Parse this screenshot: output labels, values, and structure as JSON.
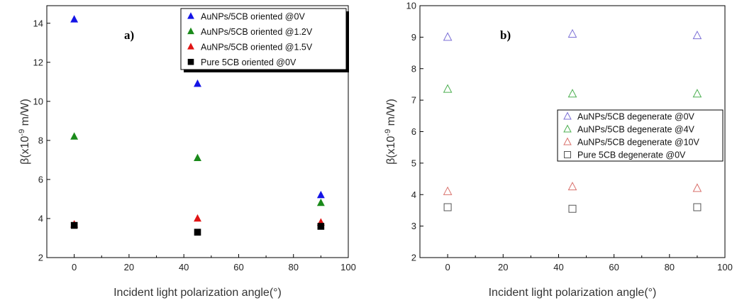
{
  "chart_data": [
    {
      "type": "scatter",
      "panel_label": "a)",
      "xlabel": "Incident light polarization angle(°)",
      "ylabel_main": "β(x10",
      "ylabel_exp": "-9",
      "ylabel_tail": " m/W)",
      "xlim": [
        -10,
        100
      ],
      "ylim": [
        2,
        14.9
      ],
      "xticks": [
        0,
        20,
        40,
        60,
        80,
        100
      ],
      "yticks": [
        2,
        4,
        6,
        8,
        10,
        12,
        14
      ],
      "marker_fill": "filled",
      "legend_position": "top-right",
      "series": [
        {
          "name": "AuNPs/5CB oriented @0V",
          "marker": "triangle",
          "color": "#1414e6",
          "x": [
            0,
            45,
            90
          ],
          "y": [
            14.2,
            10.9,
            5.2
          ]
        },
        {
          "name": "AuNPs/5CB oriented @1.2V",
          "marker": "triangle",
          "color": "#1a8a1a",
          "x": [
            0,
            45,
            90
          ],
          "y": [
            8.2,
            7.1,
            4.8
          ]
        },
        {
          "name": "AuNPs/5CB oriented @1.5V",
          "marker": "triangle",
          "color": "#e01414",
          "x": [
            0,
            45,
            90
          ],
          "y": [
            3.7,
            4.0,
            3.8
          ]
        },
        {
          "name": "Pure 5CB oriented @0V",
          "marker": "square",
          "color": "#000000",
          "x": [
            0,
            45,
            90
          ],
          "y": [
            3.65,
            3.3,
            3.6
          ]
        }
      ]
    },
    {
      "type": "scatter",
      "panel_label": "b)",
      "xlabel": "Incident light polarization angle(°)",
      "ylabel_main": "β(x10",
      "ylabel_exp": "-9",
      "ylabel_tail": " m/W)",
      "xlim": [
        -10,
        100
      ],
      "ylim": [
        2,
        10
      ],
      "xticks": [
        0,
        20,
        40,
        60,
        80,
        100
      ],
      "yticks": [
        2,
        3,
        4,
        5,
        6,
        7,
        8,
        9,
        10
      ],
      "marker_fill": "open",
      "legend_position": "center-right",
      "series": [
        {
          "name": "AuNPs/5CB degenerate @0V",
          "marker": "triangle",
          "color": "#7b6fd6",
          "x": [
            0,
            45,
            90
          ],
          "y": [
            9.0,
            9.1,
            9.05
          ]
        },
        {
          "name": "AuNPs/5CB degenerate @4V",
          "marker": "triangle",
          "color": "#4caf50",
          "x": [
            0,
            45,
            90
          ],
          "y": [
            7.35,
            7.2,
            7.2
          ]
        },
        {
          "name": "AuNPs/5CB degenerate @10V",
          "marker": "triangle",
          "color": "#d9706b",
          "x": [
            0,
            45,
            90
          ],
          "y": [
            4.1,
            4.25,
            4.2
          ]
        },
        {
          "name": "Pure 5CB degenerate @0V",
          "marker": "square",
          "color": "#555555",
          "x": [
            0,
            45,
            90
          ],
          "y": [
            3.6,
            3.55,
            3.6
          ]
        }
      ]
    }
  ]
}
